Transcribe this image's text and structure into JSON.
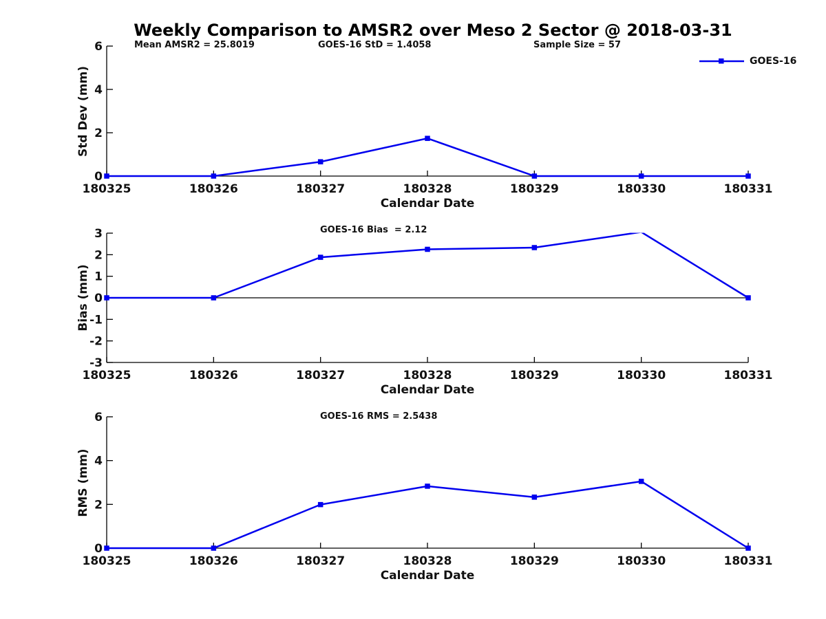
{
  "figure": {
    "title": "Weekly Comparison to AMSR2 over Meso 2 Sector @ 2018-03-31",
    "legend": {
      "label": "GOES-16",
      "position": "top-right"
    },
    "colors": {
      "series": "#0000ee",
      "axis": "#000000",
      "text": "#111111"
    }
  },
  "chart_data": [
    {
      "type": "line",
      "ylabel": "Std Dev (mm)",
      "xlabel": "Calendar Date",
      "categories": [
        "180325",
        "180326",
        "180327",
        "180328",
        "180329",
        "180330",
        "180331"
      ],
      "series": [
        {
          "name": "GOES-16",
          "values": [
            0,
            0,
            0.66,
            1.74,
            0,
            0,
            0
          ]
        }
      ],
      "ylim": [
        0,
        6
      ],
      "yticks": [
        0,
        2,
        4,
        6
      ],
      "grid": false,
      "zero_line": false,
      "marker": "square",
      "annotations": [
        "Mean AMSR2 = 25.8019",
        "GOES-16 StD = 1.4058",
        "Sample Size = 57"
      ],
      "stats": {
        "mean_amsr2": 25.8019,
        "goes16_std": 1.4058,
        "sample_size": 57
      }
    },
    {
      "type": "line",
      "ylabel": "Bias (mm)",
      "xlabel": "Calendar Date",
      "categories": [
        "180325",
        "180326",
        "180327",
        "180328",
        "180329",
        "180330",
        "180331"
      ],
      "series": [
        {
          "name": "GOES-16",
          "values": [
            0,
            0,
            1.88,
            2.25,
            2.33,
            3.05,
            0
          ]
        }
      ],
      "ylim": [
        -3,
        3
      ],
      "yticks": [
        3,
        2,
        1,
        0,
        -1,
        -2,
        -3
      ],
      "grid": false,
      "zero_line": true,
      "marker": "square",
      "annotations": [
        "GOES-16 Bias  = 2.12"
      ],
      "stats": {
        "goes16_bias": 2.12
      }
    },
    {
      "type": "line",
      "ylabel": "RMS (mm)",
      "xlabel": "Calendar Date",
      "categories": [
        "180325",
        "180326",
        "180327",
        "180328",
        "180329",
        "180330",
        "180331"
      ],
      "series": [
        {
          "name": "GOES-16",
          "values": [
            0,
            0,
            1.99,
            2.83,
            2.33,
            3.05,
            0
          ]
        }
      ],
      "ylim": [
        0,
        6
      ],
      "yticks": [
        0,
        2,
        4,
        6
      ],
      "grid": false,
      "zero_line": false,
      "marker": "square",
      "annotations": [
        "GOES-16 RMS = 2.5438"
      ],
      "stats": {
        "goes16_rms": 2.5438
      }
    }
  ]
}
